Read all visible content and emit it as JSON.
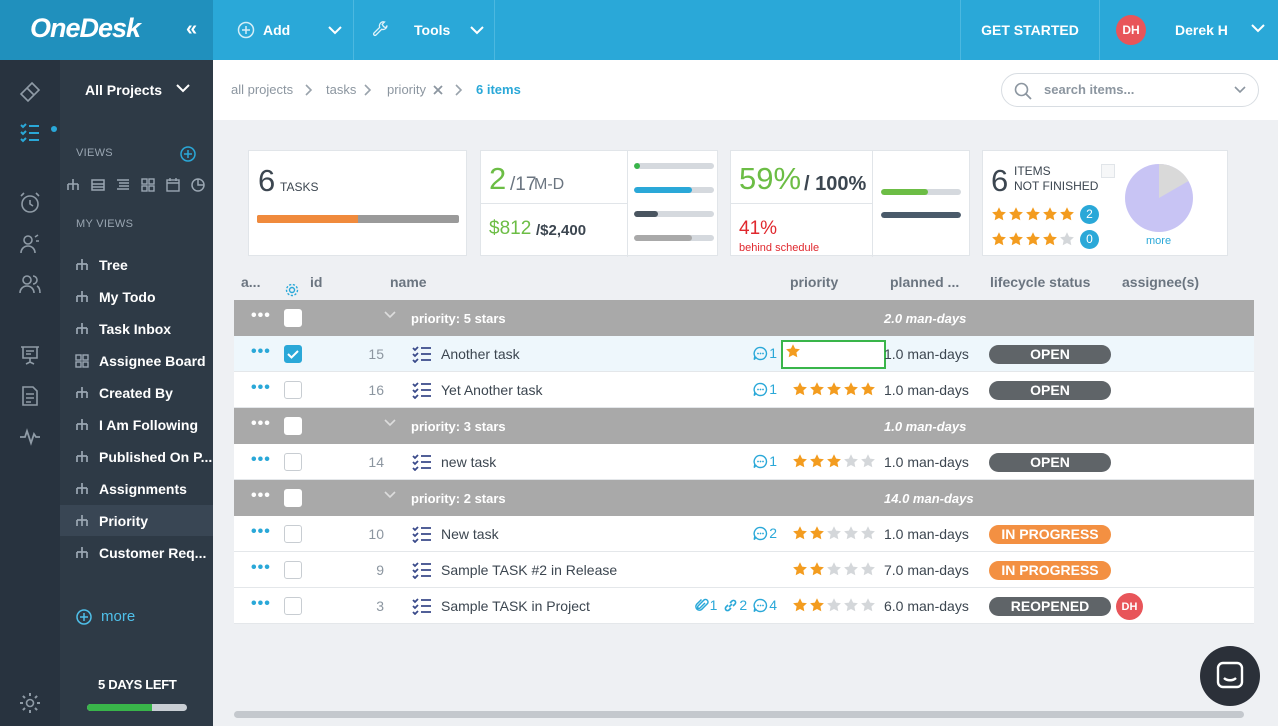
{
  "topbar": {
    "logo": "OneDesk",
    "add_label": "Add",
    "tools_label": "Tools",
    "get_started": "GET STARTED",
    "user_initials": "DH",
    "user_name": "Derek H"
  },
  "sidebar": {
    "project_selector": "All Projects",
    "views_heading": "VIEWS",
    "my_views_heading": "MY VIEWS",
    "items": [
      {
        "label": "Tree",
        "icon": "tree-icon"
      },
      {
        "label": "My Todo",
        "icon": "tree-icon"
      },
      {
        "label": "Task Inbox",
        "icon": "tree-icon"
      },
      {
        "label": "Assignee Board",
        "icon": "board-icon"
      },
      {
        "label": "Created By",
        "icon": "tree-icon"
      },
      {
        "label": "I Am Following",
        "icon": "tree-icon"
      },
      {
        "label": "Published On P...",
        "icon": "tree-icon"
      },
      {
        "label": "Assignments",
        "icon": "tree-icon"
      },
      {
        "label": "Priority",
        "icon": "tree-icon",
        "active": true
      },
      {
        "label": "Customer Req...",
        "icon": "tree-icon"
      }
    ],
    "more_label": "more",
    "trial_label": "5 DAYS LEFT",
    "trial_progress": 0.65
  },
  "breadcrumb": {
    "all_projects": "all projects",
    "tasks": "tasks",
    "priority": "priority",
    "count": "6 items"
  },
  "search": {
    "placeholder": "search items..."
  },
  "cards": {
    "tasks": {
      "count": "6",
      "label": "TASKS",
      "orange_fraction": 0.5
    },
    "effort": {
      "done": "2",
      "total": "/17",
      "unit": " M-D",
      "cost": "$812",
      "budget": "/$2,400",
      "bars": [
        {
          "value": 0.08,
          "color": "#39b54a"
        },
        {
          "value": 0.73,
          "color": "#2aa8d8"
        },
        {
          "value": 0.3,
          "color": "#4a5560"
        },
        {
          "value": 0.73,
          "color": "#a9a9a9"
        }
      ]
    },
    "progress": {
      "percent": "59%",
      "of": "/ 100%",
      "behind_percent": "41%",
      "behind_label": "behind schedule",
      "green_bar": 0.59,
      "dark_bar": 1.0
    },
    "not_finished": {
      "count": "6",
      "label_line1": "ITEMS",
      "label_line2": "NOT FINISHED",
      "five_star_count": "2",
      "four_star_count": "0",
      "more": "more"
    }
  },
  "columns": {
    "a": "a...",
    "id": "id",
    "name": "name",
    "priority": "priority",
    "planned": "planned ...",
    "lifecycle": "lifecycle status",
    "assignee": "assignee(s)"
  },
  "groups": [
    {
      "label": "priority: 5 stars",
      "days": "2.0 man-days",
      "rows": [
        {
          "id": "15",
          "name": "Another task",
          "comments": "1",
          "stars": 1,
          "planned": "1.0 man-days",
          "status": "OPEN",
          "selected": true,
          "editing": true
        },
        {
          "id": "16",
          "name": "Yet Another task",
          "comments": "1",
          "stars": 5,
          "planned": "1.0 man-days",
          "status": "OPEN"
        }
      ]
    },
    {
      "label": "priority: 3 stars",
      "days": "1.0 man-days",
      "rows": [
        {
          "id": "14",
          "name": "new task",
          "comments": "1",
          "stars": 3,
          "planned": "1.0 man-days",
          "status": "OPEN"
        }
      ]
    },
    {
      "label": "priority: 2 stars",
      "days": "14.0 man-days",
      "rows": [
        {
          "id": "10",
          "name": "New task",
          "comments": "2",
          "stars": 2,
          "planned": "1.0 man-days",
          "status": "IN PROGRESS"
        },
        {
          "id": "9",
          "name": "Sample TASK #2 in Release",
          "stars": 2,
          "planned": "7.0 man-days",
          "status": "IN PROGRESS"
        },
        {
          "id": "3",
          "name": "Sample TASK in Project",
          "attachments": "1",
          "links": "2",
          "comments": "4",
          "stars": 2,
          "planned": "6.0 man-days",
          "status": "REOPENED",
          "assignee": "DH"
        }
      ]
    }
  ],
  "status_colors": {
    "OPEN": "#5f6468",
    "IN PROGRESS": "#f39042",
    "REOPENED": "#5f6468"
  },
  "colors": {
    "accent": "#2aa8d8",
    "star": "#f39c1f",
    "star_empty": "#d4d7da"
  }
}
